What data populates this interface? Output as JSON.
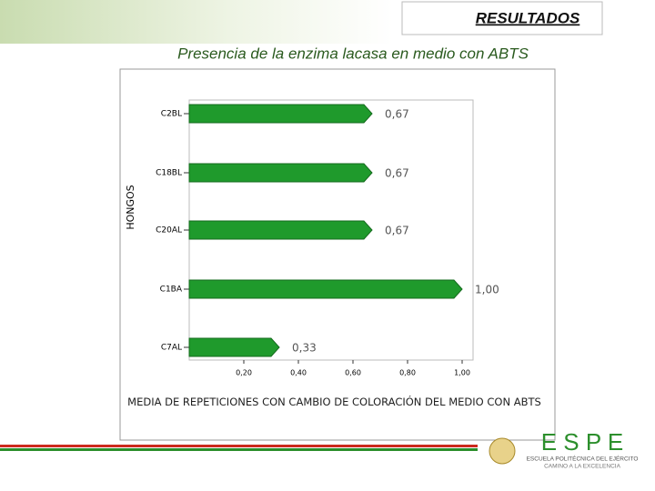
{
  "slide": {
    "header": "RESULTADOS",
    "logo": {
      "letters": "E S P E",
      "line1": "ESCUELA POLITÉCNICA DEL EJÉRCITO",
      "line2": "CAMINO A LA EXCELENCIA"
    }
  },
  "chart_data": {
    "type": "barh",
    "title": "Presencia de la enzima lacasa en medio con ABTS",
    "y_label": "HONGOS",
    "x_label": "MEDIA DE REPETICIONES CON CAMBIO DE COLORACIÓN DEL MEDIO CON ABTS",
    "categories": [
      "C2BL",
      "C18BL",
      "C20AL",
      "C1BA",
      "C7AL"
    ],
    "values": [
      0.67,
      0.67,
      0.67,
      1.0,
      0.33
    ],
    "value_labels": [
      "0,67",
      "0,67",
      "0,67",
      "1,00",
      "0,33"
    ],
    "color": "#1f9a2c",
    "xlim": [
      0,
      1.04
    ],
    "xticks": [
      {
        "value": 0.2,
        "label": "0,20"
      },
      {
        "value": 0.4,
        "label": "0,40"
      },
      {
        "value": 0.6,
        "label": "0,60"
      },
      {
        "value": 0.8,
        "label": "0,80"
      },
      {
        "value": 1.0,
        "label": "1,00"
      }
    ]
  }
}
